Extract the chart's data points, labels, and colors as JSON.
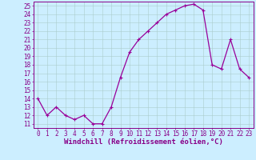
{
  "x": [
    0,
    1,
    2,
    3,
    4,
    5,
    6,
    7,
    8,
    9,
    10,
    11,
    12,
    13,
    14,
    15,
    16,
    17,
    18,
    19,
    20,
    21,
    22,
    23
  ],
  "y": [
    14,
    12,
    13,
    12,
    11.5,
    12,
    11,
    11,
    13,
    16.5,
    19.5,
    21,
    22,
    23,
    24,
    24.5,
    25,
    25.2,
    24.5,
    18,
    17.5,
    21,
    17.5,
    16.5
  ],
  "line_color": "#990099",
  "marker": "+",
  "marker_size": 3,
  "marker_linewidth": 0.8,
  "line_width": 0.9,
  "bg_color": "#cceeff",
  "grid_color": "#aacccc",
  "xlabel": "Windchill (Refroidissement éolien,°C)",
  "xlim_min": -0.5,
  "xlim_max": 23.5,
  "ylim_min": 10.5,
  "ylim_max": 25.5,
  "yticks": [
    11,
    12,
    13,
    14,
    15,
    16,
    17,
    18,
    19,
    20,
    21,
    22,
    23,
    24,
    25
  ],
  "xticks": [
    0,
    1,
    2,
    3,
    4,
    5,
    6,
    7,
    8,
    9,
    10,
    11,
    12,
    13,
    14,
    15,
    16,
    17,
    18,
    19,
    20,
    21,
    22,
    23
  ],
  "tick_fontsize": 5.5,
  "xlabel_fontsize": 6.5,
  "label_color": "#880088",
  "spine_color": "#880088",
  "grid_linewidth": 0.4
}
